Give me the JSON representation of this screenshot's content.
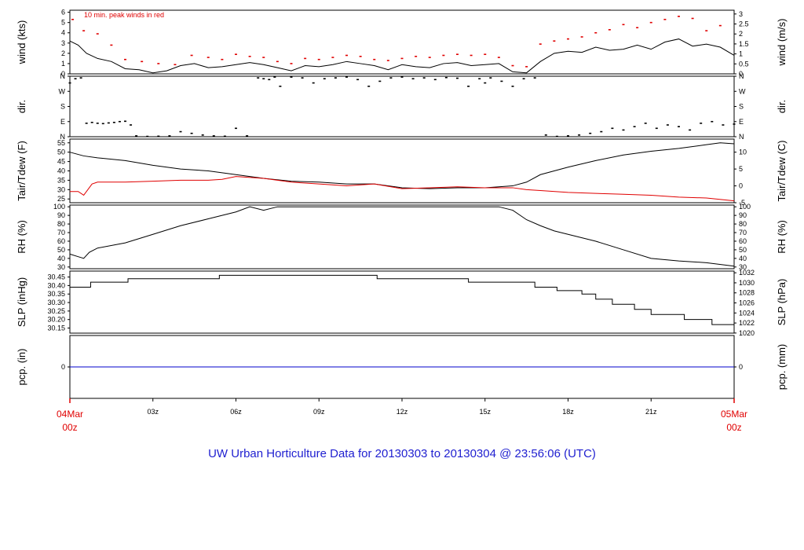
{
  "title": "UW Urban Horticulture Data for 20130303  to  20130304 @ 23:56:06  (UTC)",
  "colors": {
    "title": "#1f1fd0",
    "red": "#e00000",
    "blue": "#0000cc",
    "black": "#000000"
  },
  "chart_data": {
    "type": "line",
    "x_unit": "hours (UTC)",
    "x_range": [
      0,
      24
    ],
    "start_label": [
      "04Mar",
      "00z"
    ],
    "end_label": [
      "05Mar",
      "00z"
    ],
    "x_ticks": [
      {
        "t": 3,
        "label": "03z"
      },
      {
        "t": 6,
        "label": "06z"
      },
      {
        "t": 9,
        "label": "09z"
      },
      {
        "t": 12,
        "label": "12z"
      },
      {
        "t": 15,
        "label": "15z"
      },
      {
        "t": 18,
        "label": "18z"
      },
      {
        "t": 21,
        "label": "21z"
      }
    ],
    "panels": [
      {
        "key": "wind",
        "ylabel_left": "wind (kts)",
        "ylabel_right": "wind (m/s)",
        "ylim": [
          0,
          6.2
        ],
        "left_ticks": [
          0,
          1,
          2,
          3,
          4,
          5,
          6
        ],
        "right_ticks": [
          [
            0,
            "0"
          ],
          [
            0.5,
            "0.5"
          ],
          [
            1,
            "1"
          ],
          [
            1.5,
            "1.5"
          ],
          [
            2,
            "2"
          ],
          [
            2.5,
            "2.5"
          ],
          [
            3,
            "3"
          ]
        ],
        "right_factor": 1.944,
        "note": "10 min. peak winds in red",
        "series": [
          {
            "color": "#000000",
            "x": [
              0,
              0.3,
              0.6,
              1,
              1.5,
              2,
              2.5,
              3,
              3.5,
              4,
              4.5,
              5,
              5.5,
              6,
              6.5,
              7,
              7.5,
              8,
              8.5,
              9,
              9.5,
              10,
              10.5,
              11,
              11.5,
              12,
              12.5,
              13,
              13.5,
              14,
              14.5,
              15,
              15.5,
              16,
              16.5,
              17,
              17.5,
              18,
              18.5,
              19,
              19.5,
              20,
              20.5,
              21,
              21.5,
              22,
              22.5,
              23,
              23.5,
              24
            ],
            "y": [
              3.2,
              2.8,
              2.0,
              1.5,
              1.2,
              0.5,
              0.4,
              0.1,
              0.3,
              0.8,
              1.0,
              0.6,
              0.7,
              0.9,
              1.1,
              0.9,
              0.6,
              0.3,
              0.8,
              0.7,
              0.9,
              1.2,
              1.0,
              0.8,
              0.4,
              0.9,
              0.7,
              0.6,
              1.0,
              1.1,
              0.8,
              0.9,
              1.0,
              0.2,
              0.1,
              1.2,
              2.0,
              2.2,
              2.1,
              2.6,
              2.3,
              2.4,
              2.8,
              2.4,
              3.1,
              3.4,
              2.7,
              2.9,
              2.6,
              1.8
            ]
          },
          {
            "color": "#e00000",
            "style": "dots",
            "x": [
              0.1,
              0.5,
              1,
              1.5,
              2,
              2.6,
              3.2,
              3.8,
              4.4,
              5,
              5.5,
              6,
              6.5,
              7,
              7.5,
              8,
              8.5,
              9,
              9.5,
              10,
              10.5,
              11,
              11.5,
              12,
              12.5,
              13,
              13.5,
              14,
              14.5,
              15,
              15.5,
              16,
              16.5,
              17,
              17.5,
              18,
              18.5,
              19,
              19.5,
              20,
              20.5,
              21,
              21.5,
              22,
              22.5,
              23,
              23.5
            ],
            "y": [
              5.3,
              4.2,
              3.9,
              2.8,
              1.4,
              1.2,
              1.0,
              0.9,
              1.8,
              1.6,
              1.4,
              1.9,
              1.7,
              1.6,
              1.2,
              1.0,
              1.5,
              1.4,
              1.6,
              1.8,
              1.7,
              1.4,
              1.3,
              1.5,
              1.7,
              1.6,
              1.8,
              1.9,
              1.8,
              1.9,
              1.6,
              0.8,
              0.7,
              2.9,
              3.2,
              3.4,
              3.6,
              4.0,
              4.3,
              4.8,
              4.5,
              5.0,
              5.3,
              5.6,
              5.4,
              4.2,
              4.7
            ]
          }
        ]
      },
      {
        "key": "dir",
        "ylabel_left": "dir.",
        "ylabel_right": "dir.",
        "ylim": [
          0,
          360
        ],
        "left_ticks_labeled": [
          [
            0,
            "N"
          ],
          [
            90,
            "E"
          ],
          [
            180,
            "S"
          ],
          [
            270,
            "W"
          ],
          [
            360,
            "N"
          ]
        ],
        "series": [
          {
            "color": "#000000",
            "style": "dots",
            "x": [
              0,
              0.2,
              0.4,
              0.6,
              0.8,
              1,
              1.2,
              1.4,
              1.6,
              1.8,
              2,
              2.2,
              2.4,
              2.8,
              3.2,
              3.6,
              4,
              4.4,
              4.8,
              5.2,
              5.6,
              6,
              6.4,
              6.8,
              7,
              7.2,
              7.4,
              7.6,
              8,
              8.4,
              8.8,
              9.2,
              9.6,
              10,
              10.4,
              10.8,
              11.2,
              11.6,
              12,
              12.4,
              12.8,
              13.2,
              13.6,
              14,
              14.4,
              14.8,
              15,
              15.2,
              15.6,
              16,
              16.4,
              16.8,
              17.2,
              17.6,
              18,
              18.4,
              18.8,
              19.2,
              19.6,
              20,
              20.4,
              20.8,
              21.2,
              21.6,
              22,
              22.4,
              22.8,
              23.2,
              23.6,
              24
            ],
            "y": [
              320,
              345,
              350,
              80,
              85,
              80,
              78,
              82,
              85,
              90,
              92,
              70,
              5,
              2,
              3,
              5,
              30,
              20,
              10,
              5,
              3,
              50,
              5,
              350,
              345,
              340,
              355,
              300,
              355,
              350,
              320,
              345,
              350,
              355,
              340,
              300,
              330,
              350,
              355,
              345,
              350,
              340,
              352,
              348,
              300,
              345,
              320,
              350,
              330,
              300,
              345,
              350,
              10,
              2,
              5,
              10,
              20,
              30,
              50,
              40,
              60,
              80,
              50,
              70,
              60,
              40,
              80,
              90,
              70,
              75
            ]
          }
        ]
      },
      {
        "key": "temp",
        "ylabel_left": "Tair/Tdew (F)",
        "ylabel_right": "Tair/Tdew (C)",
        "ylim": [
          23,
          57
        ],
        "left_ticks": [
          25,
          30,
          35,
          40,
          45,
          50,
          55
        ],
        "right_ticks": [
          [
            -5,
            "-5"
          ],
          [
            0,
            "0"
          ],
          [
            5,
            "5"
          ],
          [
            10,
            "10"
          ]
        ],
        "right_type": "celsius",
        "series": [
          {
            "name": "Tair",
            "color": "#000000",
            "x": [
              0,
              0.5,
              1,
              2,
              3,
              4,
              5,
              6,
              7,
              8,
              9,
              10,
              11,
              12,
              13,
              14,
              15,
              15.5,
              16,
              16.5,
              17,
              18,
              19,
              20,
              21,
              22,
              23,
              23.5,
              24
            ],
            "y": [
              50,
              48,
              47,
              45.5,
              43,
              41,
              40,
              38,
              36,
              34.5,
              34,
              33,
              33,
              31,
              30.5,
              31,
              31,
              31.5,
              32,
              34,
              38,
              42,
              45.5,
              48.5,
              50.5,
              52,
              54,
              55,
              54.5
            ]
          },
          {
            "name": "Tdew",
            "color": "#e00000",
            "x": [
              0,
              0.3,
              0.5,
              0.8,
              1,
              2,
              3,
              4,
              5,
              5.5,
              6,
              7,
              8,
              9,
              10,
              11,
              12,
              13,
              14,
              15,
              15.5,
              16,
              16.5,
              17,
              18,
              19,
              20,
              21,
              22,
              23,
              24
            ],
            "y": [
              29,
              29,
              27,
              33,
              34,
              34,
              34.5,
              35,
              35,
              35.5,
              37,
              36,
              34,
              33,
              32,
              33,
              30.5,
              31,
              31.5,
              31,
              31,
              31,
              30,
              29.5,
              28.5,
              28,
              27.5,
              27,
              26,
              25.5,
              24
            ]
          }
        ]
      },
      {
        "key": "rh",
        "ylabel_left": "RH (%)",
        "ylabel_right": "RH (%)",
        "ylim": [
          28,
          102
        ],
        "left_ticks": [
          30,
          40,
          50,
          60,
          70,
          80,
          90,
          100
        ],
        "right_ticks": [
          [
            30,
            "30"
          ],
          [
            40,
            "40"
          ],
          [
            50,
            "50"
          ],
          [
            60,
            "60"
          ],
          [
            70,
            "70"
          ],
          [
            80,
            "80"
          ],
          [
            90,
            "90"
          ],
          [
            100,
            "100"
          ]
        ],
        "series": [
          {
            "color": "#000000",
            "x": [
              0,
              0.3,
              0.5,
              0.7,
              1,
              2,
              3,
              4,
              5,
              5.5,
              6,
              6.5,
              7,
              7.5,
              8,
              9,
              10,
              11,
              12,
              13,
              14,
              14.5,
              15,
              15.5,
              16,
              16.5,
              17,
              17.5,
              18,
              19,
              20,
              21,
              22,
              23,
              24
            ],
            "y": [
              45,
              42,
              40,
              47,
              52,
              58,
              68,
              78,
              86,
              90,
              94,
              100,
              96,
              100,
              100,
              100,
              100,
              100,
              100,
              100,
              100,
              100,
              100,
              100,
              96,
              85,
              78,
              72,
              68,
              60,
              50,
              40,
              37,
              35,
              31
            ]
          }
        ]
      },
      {
        "key": "slp",
        "ylabel_left": "SLP (inHg)",
        "ylabel_right": "SLP (hPa)",
        "ylim": [
          30.12,
          30.485
        ],
        "left_ticks": [
          30.15,
          30.2,
          30.25,
          30.3,
          30.35,
          30.4,
          30.45
        ],
        "left_tick_format": 2,
        "right_ticks": [
          [
            1020,
            "1020"
          ],
          [
            1022,
            "1022"
          ],
          [
            1024,
            "1024"
          ],
          [
            1026,
            "1026"
          ],
          [
            1028,
            "1028"
          ],
          [
            1030,
            "1030"
          ],
          [
            1032,
            "1032"
          ]
        ],
        "right_type": "hpa",
        "series": [
          {
            "color": "#000000",
            "style": "step",
            "x": [
              0,
              0.75,
              2.1,
              5.4,
              11.1,
              14.4,
              16.8,
              17.6,
              18.5,
              19.0,
              19.6,
              20.4,
              21.0,
              22.2,
              23.2,
              24
            ],
            "y": [
              30.39,
              30.42,
              30.44,
              30.46,
              30.44,
              30.42,
              30.39,
              30.37,
              30.35,
              30.32,
              30.29,
              30.26,
              30.23,
              30.2,
              30.17,
              30.15
            ]
          }
        ]
      },
      {
        "key": "pcp",
        "ylabel_left": "pcp. (in)",
        "ylabel_right": "pcp. (mm)",
        "ylim": [
          -1,
          1
        ],
        "left_ticks": [
          0
        ],
        "right_ticks": [
          [
            0,
            "0"
          ]
        ],
        "series": [
          {
            "color": "#0000cc",
            "x": [
              0,
              24
            ],
            "y": [
              0,
              0
            ]
          }
        ]
      }
    ]
  }
}
